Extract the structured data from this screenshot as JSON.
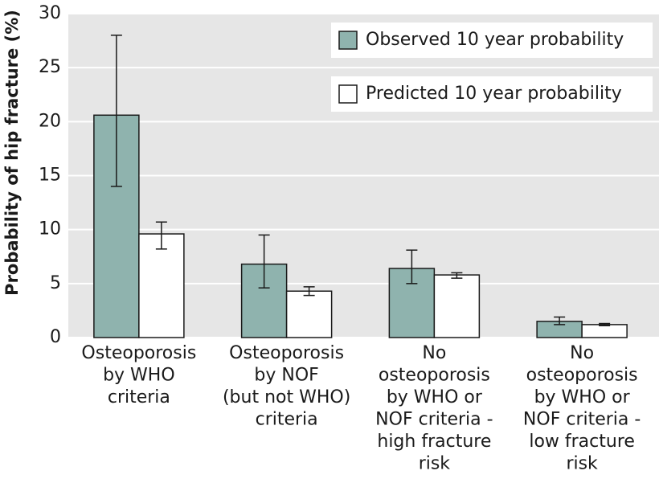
{
  "chart_data": {
    "type": "bar",
    "ylabel": "Probability of hip fracture (%)",
    "categories": [
      "Osteoporosis\nby WHO\ncriteria",
      "Osteoporosis\nby NOF\n(but not WHO)\ncriteria",
      "No\nosteoporosis\nby WHO or\nNOF criteria -\nhigh fracture\nrisk",
      "No\nosteoporosis\nby WHO or\nNOF criteria -\nlow fracture\nrisk"
    ],
    "series": [
      {
        "name": "Observed 10 year probability",
        "color": "#8fb3ae",
        "values": [
          20.6,
          6.8,
          6.4,
          1.5
        ],
        "ci_low": [
          14.0,
          4.6,
          5.0,
          1.2
        ],
        "ci_high": [
          28.0,
          9.5,
          8.1,
          1.9
        ]
      },
      {
        "name": "Predicted 10 year probability",
        "color": "#ffffff",
        "values": [
          9.6,
          4.3,
          5.8,
          1.2
        ],
        "ci_low": [
          8.2,
          3.9,
          5.5,
          1.1
        ],
        "ci_high": [
          10.7,
          4.7,
          6.0,
          1.3
        ]
      }
    ],
    "ylim": [
      0,
      30
    ],
    "yticks": [
      0,
      5,
      10,
      15,
      20,
      25,
      30
    ],
    "grid": true,
    "legend": "top-right"
  }
}
